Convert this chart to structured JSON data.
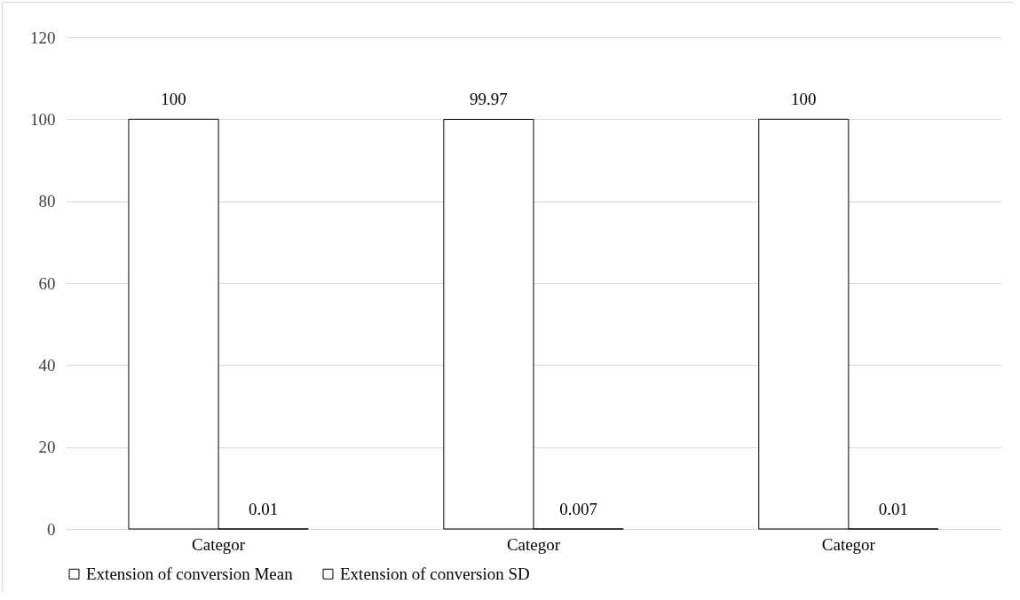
{
  "chart_data": {
    "type": "bar",
    "categories": [
      "Categor",
      "Categor",
      "Categor"
    ],
    "series": [
      {
        "name": "Extension of conversion Mean",
        "color": "#ffffff",
        "values": [
          100,
          99.97,
          100
        ]
      },
      {
        "name": "Extension of conversion SD",
        "color": "#ffffff",
        "values": [
          0.01,
          0.007,
          0.01
        ]
      }
    ],
    "ylim": [
      0,
      120
    ],
    "yticks": [
      0,
      20,
      40,
      60,
      80,
      100,
      120
    ],
    "grid": "y",
    "legend": "bottom",
    "data_labels": true
  }
}
